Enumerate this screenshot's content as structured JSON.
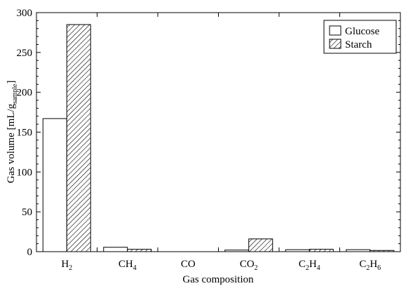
{
  "chart_data": {
    "type": "bar",
    "xlabel": "Gas composition",
    "ylabel": {
      "prefix": "Gas volume [mL/g",
      "subscript": "sample",
      "suffix": "]"
    },
    "ylim": [
      0,
      300
    ],
    "yticks": [
      0,
      50,
      100,
      150,
      200,
      250,
      300
    ],
    "categories": [
      {
        "base": "H",
        "sub": "2",
        "label": "H2"
      },
      {
        "base": "CH",
        "sub": "4",
        "label": "CH4"
      },
      {
        "base": "CO",
        "sub": "",
        "label": "CO"
      },
      {
        "base": "CO",
        "sub": "2",
        "label": "CO2"
      },
      {
        "base": "C",
        "sub": "2",
        "base2": "H",
        "sub2": "4",
        "label": "C2H4"
      },
      {
        "base": "C",
        "sub": "2",
        "base2": "H",
        "sub2": "6",
        "label": "C2H6"
      }
    ],
    "series": [
      {
        "name": "Glucose",
        "pattern": "open",
        "values": [
          167,
          5.5,
          0,
          2,
          2.5,
          2.5
        ]
      },
      {
        "name": "Starch",
        "pattern": "hatched",
        "values": [
          285,
          3,
          0,
          16,
          3,
          1.5
        ]
      }
    ],
    "legend": {
      "position": "top-right"
    },
    "grid": false
  }
}
